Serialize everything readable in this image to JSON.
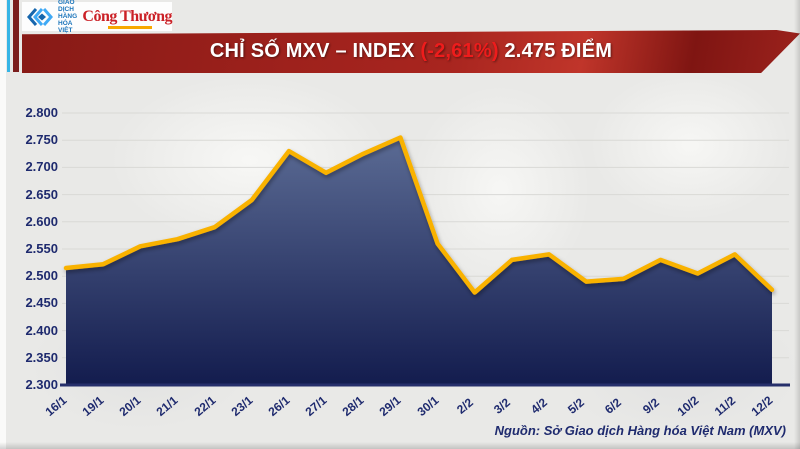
{
  "page": {
    "background": "#e9e9e7"
  },
  "header": {
    "stripes": {
      "cyan": "#35b4e5",
      "maroon": "#7b1d1d"
    },
    "mxv_logo": {
      "icon": "mxv-chevrons-icon",
      "icon_color_light": "#3fa9f5",
      "icon_color_dark": "#1666ad",
      "org_lines": [
        "SỞ GIAO DỊCH",
        "HÀNG HÓA",
        "VIỆT NAM"
      ]
    },
    "congthuong_logo": {
      "name": "Công Thương",
      "color": "#cb2127",
      "underline_color": "#f7a800"
    }
  },
  "banner": {
    "title": "CHỈ SỐ MXV – INDEX",
    "change": "(-2,61%)",
    "value_text": "2.475 ĐIỂM",
    "change_color": "#ee1c1c",
    "bg_color": "#a0221d"
  },
  "chart_data": {
    "type": "area",
    "title": "CHỈ SỐ MXV – INDEX",
    "categories": [
      "16/1",
      "19/1",
      "20/1",
      "21/1",
      "22/1",
      "23/1",
      "26/1",
      "27/1",
      "28/1",
      "29/1",
      "30/1",
      "2/2",
      "3/2",
      "4/2",
      "5/2",
      "6/2",
      "9/2",
      "10/2",
      "11/2",
      "12/2"
    ],
    "values": [
      2515,
      2522,
      2555,
      2568,
      2590,
      2640,
      2730,
      2690,
      2725,
      2755,
      2560,
      2470,
      2530,
      2540,
      2490,
      2495,
      2530,
      2505,
      2540,
      2475
    ],
    "ylim": [
      2300,
      2800
    ],
    "ytick_values": [
      2800,
      2750,
      2700,
      2650,
      2600,
      2550,
      2500,
      2450,
      2400,
      2350,
      2300
    ],
    "ytick_labels": [
      "2.800",
      "2.750",
      "2.700",
      "2.650",
      "2.600",
      "2.550",
      "2.500",
      "2.450",
      "2.400",
      "2.350",
      "2.300"
    ],
    "grid": true,
    "legend": "none",
    "line_color": "#f9b200",
    "area_top_color": "#5b6b94",
    "area_bottom_color": "#131c4e",
    "axis_color": "#262f6b",
    "label_color": "#1e2a6e",
    "grid_color": "#d9d9d6"
  },
  "footer": {
    "source": "Nguồn: Sở Giao dịch Hàng hóa Việt Nam (MXV)"
  }
}
